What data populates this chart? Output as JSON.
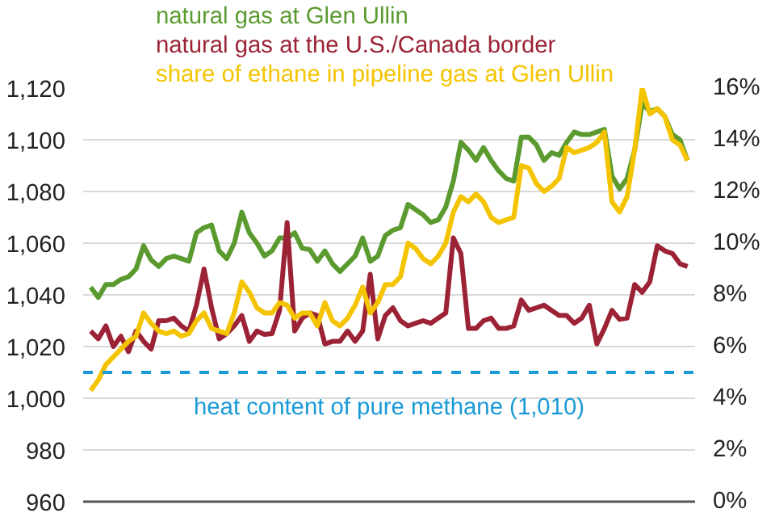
{
  "chart_data": {
    "type": "line",
    "categories": [
      null,
      null,
      null,
      null,
      null,
      null,
      null,
      null,
      null,
      null,
      null,
      null,
      null,
      null,
      null,
      null,
      null,
      null,
      null,
      null,
      null,
      null,
      null,
      null,
      null,
      null,
      null,
      null,
      null,
      null,
      null,
      null,
      null,
      null,
      null,
      null,
      null,
      null,
      null,
      null,
      null,
      null,
      null,
      null,
      null,
      null,
      null,
      null,
      null,
      null,
      null,
      null,
      null,
      null,
      null,
      null,
      null,
      null,
      null,
      null,
      null,
      null,
      null,
      null,
      null,
      null,
      null,
      null,
      null,
      null,
      null,
      null,
      null,
      null,
      null,
      null,
      null,
      null,
      null,
      null
    ],
    "series": [
      {
        "name": "natural gas at Glen Ullin",
        "color": "#5a9a2f",
        "values": [
          1043,
          1039,
          1044,
          1044,
          1046,
          1047,
          1050,
          1059,
          1053.5,
          1051,
          1054,
          1055,
          1054,
          1053,
          1064,
          1066,
          1067,
          1057,
          1054,
          1060,
          1072,
          1064,
          1060,
          1055,
          1057,
          1062,
          1062,
          1064,
          1058,
          1057.5,
          1053,
          1057,
          1052,
          1049,
          1052,
          1055,
          1062,
          1053,
          1055,
          1063,
          1065,
          1066,
          1075,
          1073,
          1071,
          1068,
          1069,
          1074,
          1084,
          1099,
          1096,
          1092,
          1097,
          1092,
          1088,
          1085,
          1084,
          1101,
          1101,
          1098,
          1092,
          1095,
          1094,
          1099,
          1103,
          1102,
          1102,
          1103,
          1104,
          1086,
          1081,
          1085,
          1096,
          1114,
          1111,
          1112,
          1109,
          1102,
          1100,
          1092
        ]
      },
      {
        "name": "natural gas at the U.S./Canada border",
        "color": "#9b2335",
        "values": [
          1026,
          1023,
          1028,
          1020,
          1024,
          1018,
          1026,
          1022,
          1019,
          1030,
          1030,
          1031,
          1028,
          1026,
          1036,
          1050,
          1035,
          1023,
          1025,
          1028,
          1032,
          1022,
          1026,
          1024.7,
          1025,
          1034,
          1068,
          1026,
          1031,
          1033,
          1032,
          1021,
          1022,
          1022,
          1026,
          1022,
          1026,
          1048,
          1023,
          1032,
          1035,
          1030,
          1028,
          1029,
          1030,
          1029,
          1031,
          1033,
          1062,
          1056,
          1027,
          1027,
          1030,
          1031,
          1027,
          1027,
          1028,
          1038,
          1034,
          1035,
          1036,
          1034,
          1032,
          1032,
          1029,
          1031,
          1036,
          1021,
          1027,
          1034,
          1030.5,
          1031,
          1044,
          1041,
          1045,
          1059,
          1057,
          1056,
          1052,
          1051
        ]
      },
      {
        "name": "share of ethane in pipeline gas at Glen Ullin",
        "color": "#f5c400",
        "axis": "y2",
        "values": [
          4.3,
          4.7,
          5.3,
          5.6,
          5.9,
          6.2,
          6.4,
          7.3,
          6.9,
          6.6,
          6.5,
          6.6,
          6.4,
          6.5,
          7.0,
          7.3,
          6.7,
          6.6,
          6.5,
          7.3,
          8.5,
          8.1,
          7.5,
          7.3,
          7.3,
          7.7,
          7.6,
          7.1,
          7.3,
          7.3,
          6.8,
          7.7,
          7.0,
          6.8,
          7.1,
          7.6,
          8.3,
          7.3,
          7.7,
          8.4,
          8.4,
          8.7,
          10.0,
          9.8,
          9.4,
          9.2,
          9.5,
          10.0,
          11.2,
          11.8,
          11.6,
          11.9,
          11.6,
          11.0,
          10.8,
          10.9,
          11.0,
          13.0,
          12.9,
          12.3,
          12.0,
          12.2,
          12.5,
          13.7,
          13.5,
          13.6,
          13.7,
          13.9,
          14.3,
          11.6,
          11.2,
          11.8,
          13.6,
          16.0,
          15.0,
          15.2,
          14.9,
          14.0,
          13.8,
          13.2
        ]
      }
    ],
    "ylim": [
      960,
      1120
    ],
    "yticks": [
      {
        "value": 960,
        "label": "960"
      },
      {
        "value": 980,
        "label": "980"
      },
      {
        "value": 1000,
        "label": "1,000"
      },
      {
        "value": 1020,
        "label": "1,020"
      },
      {
        "value": 1040,
        "label": "1,040"
      },
      {
        "value": 1060,
        "label": "1,060"
      },
      {
        "value": 1080,
        "label": "1,080"
      },
      {
        "value": 1100,
        "label": "1,100"
      },
      {
        "value": 1120,
        "label": "1,120"
      }
    ],
    "y2lim": [
      0,
      16
    ],
    "y2ticks": [
      {
        "value": 0,
        "label": "0%"
      },
      {
        "value": 2,
        "label": "2%"
      },
      {
        "value": 4,
        "label": "4%"
      },
      {
        "value": 6,
        "label": "6%"
      },
      {
        "value": 8,
        "label": "8%"
      },
      {
        "value": 10,
        "label": "10%"
      },
      {
        "value": 12,
        "label": "12%"
      },
      {
        "value": 14,
        "label": "14%"
      },
      {
        "value": 16,
        "label": "16%"
      }
    ],
    "ref_lines": [
      {
        "axis": "y",
        "value": 1010,
        "label": "heat content of pure methane (1,010)",
        "color": "#1a9ad6",
        "line_style": "dashed"
      }
    ],
    "grid": "y",
    "legend": "top left",
    "tick_labels": "y",
    "marker": "none",
    "line_style": "solid"
  }
}
